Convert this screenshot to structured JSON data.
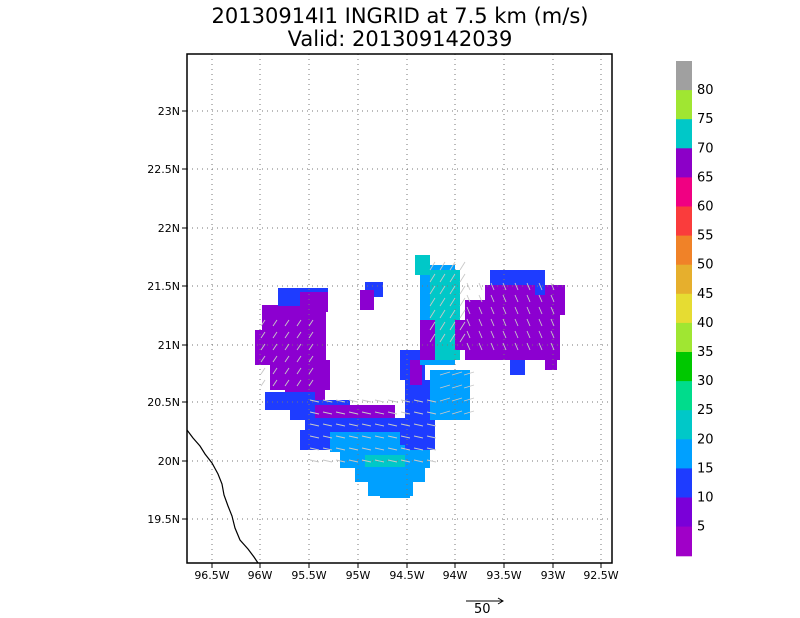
{
  "title_line1": "20130914I1 INGRID at 7.5 km (m/s)",
  "title_line2": "Valid: 201309142039",
  "axes": {
    "lon_ticks": [
      "96.5W",
      "96W",
      "95.5W",
      "95W",
      "94.5W",
      "94W",
      "93.5W",
      "93W",
      "92.5W"
    ],
    "lat_ticks": [
      "23N",
      "22.5N",
      "22N",
      "21.5N",
      "21N",
      "20.5N",
      "20N",
      "19.5N"
    ]
  },
  "colorbar": {
    "labels": [
      "5",
      "10",
      "15",
      "20",
      "25",
      "30",
      "35",
      "40",
      "45",
      "50",
      "55",
      "60",
      "65",
      "70",
      "75",
      "80"
    ],
    "colors": [
      "#a000c8",
      "#7a00d8",
      "#1e3cff",
      "#00a0ff",
      "#00c8c8",
      "#00dc8c",
      "#00c800",
      "#a0e632",
      "#e6dc32",
      "#e6af2d",
      "#f08228",
      "#fa3c3c",
      "#f00082",
      "#8c00c8",
      "#00c8c8",
      "#a0e632",
      "#a0a0a0"
    ]
  },
  "reference_vector": {
    "label": "50"
  },
  "legend_colors": {
    "purple": "#8c00d0",
    "blue": "#1e3cff",
    "lightblue": "#00a0ff",
    "cyan": "#00c8c8"
  }
}
